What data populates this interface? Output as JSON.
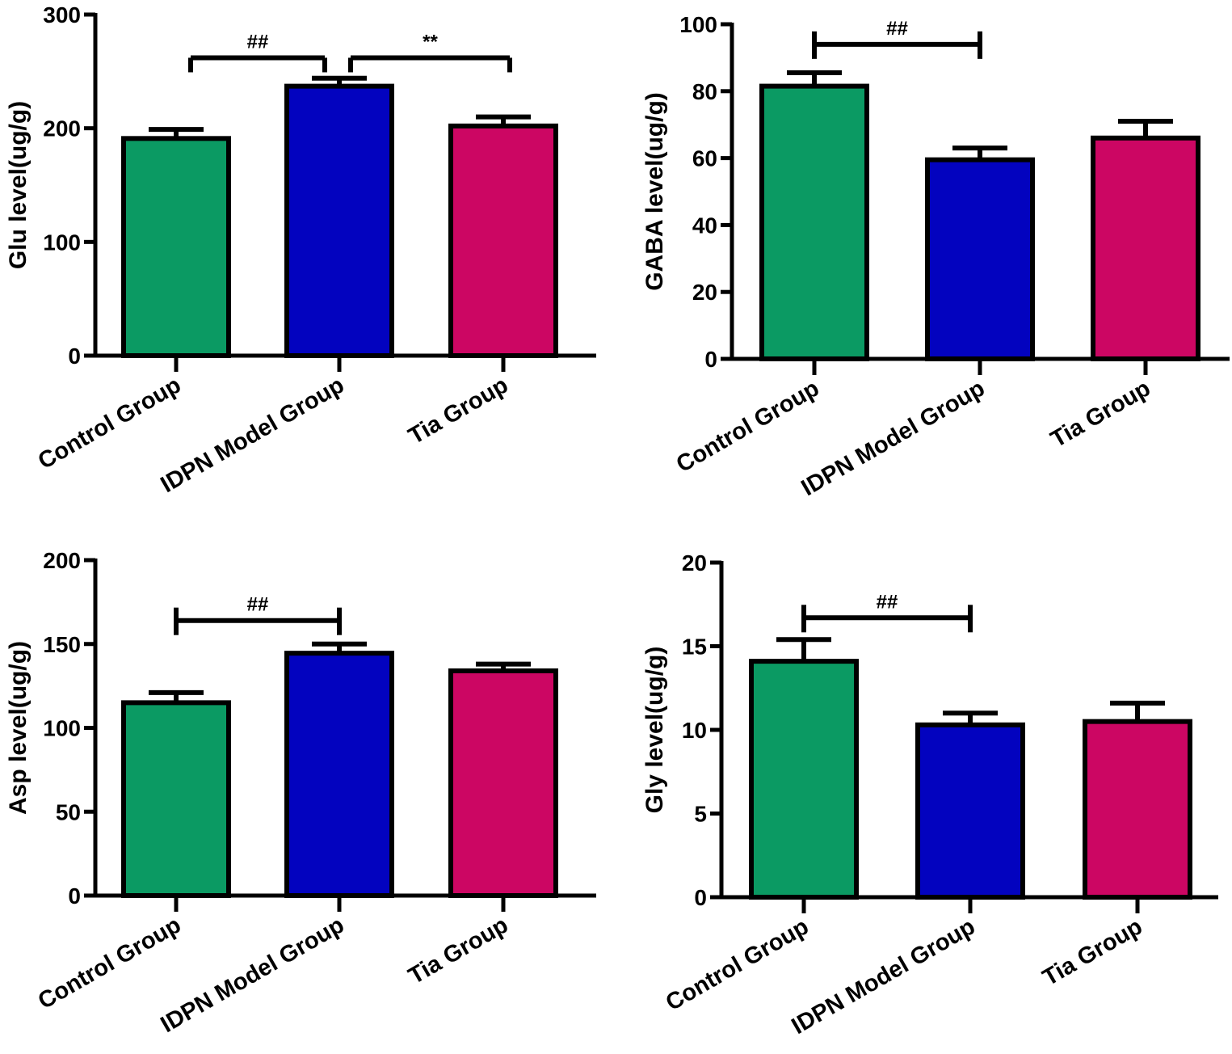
{
  "colors": {
    "control": "#0b9a63",
    "model": "#0303bf",
    "tia": "#cc0663",
    "stroke": "#000000"
  },
  "chart_data": [
    {
      "id": "glu",
      "type": "bar",
      "title": "",
      "ylabel": "Glu level(ug/g)",
      "xlabel": "",
      "ylim": [
        0,
        300
      ],
      "yticks": [
        "0",
        "100",
        "200",
        "300"
      ],
      "categories": [
        "Control Group",
        "IDPN Model Group",
        "Tia Group"
      ],
      "values": [
        191,
        237,
        202
      ],
      "errors": [
        8,
        7,
        8
      ],
      "brackets": [
        {
          "from": 0,
          "to": 1,
          "label": "##",
          "y": 262,
          "arms": "down"
        },
        {
          "from": 1,
          "to": 2,
          "label": "**",
          "y": 262,
          "arms": "down"
        }
      ]
    },
    {
      "id": "gaba",
      "type": "bar",
      "title": "",
      "ylabel": "GABA level(ug/g)",
      "xlabel": "",
      "ylim": [
        0,
        100
      ],
      "yticks": [
        "0",
        "20",
        "40",
        "60",
        "80",
        "100"
      ],
      "categories": [
        "Control Group",
        "IDPN Model Group",
        "Tia Group"
      ],
      "values": [
        81.5,
        59.5,
        66
      ],
      "errors": [
        4,
        3.5,
        5
      ],
      "brackets": [
        {
          "from": 0,
          "to": 1,
          "label": "##",
          "y": 94,
          "arms": "both"
        }
      ]
    },
    {
      "id": "asp",
      "type": "bar",
      "title": "",
      "ylabel": "Asp level(ug/g)",
      "xlabel": "",
      "ylim": [
        0,
        200
      ],
      "yticks": [
        "0",
        "50",
        "100",
        "150",
        "200"
      ],
      "categories": [
        "Control Group",
        "IDPN Model Group",
        "Tia Group"
      ],
      "values": [
        115,
        144.5,
        134
      ],
      "errors": [
        6,
        5.5,
        4
      ],
      "brackets": [
        {
          "from": 0,
          "to": 1,
          "label": "##",
          "y": 164,
          "arms": "both"
        }
      ]
    },
    {
      "id": "gly",
      "type": "bar",
      "title": "",
      "ylabel": "Gly level(ug/g)",
      "xlabel": "",
      "ylim": [
        0,
        20
      ],
      "yticks": [
        "0",
        "5",
        "10",
        "15",
        "20"
      ],
      "categories": [
        "Control Group",
        "IDPN Model Group",
        "Tia Group"
      ],
      "values": [
        14.1,
        10.3,
        10.5
      ],
      "errors": [
        1.3,
        0.7,
        1.1
      ],
      "brackets": [
        {
          "from": 0,
          "to": 1,
          "label": "##",
          "y": 16.7,
          "arms": "both"
        }
      ]
    }
  ]
}
